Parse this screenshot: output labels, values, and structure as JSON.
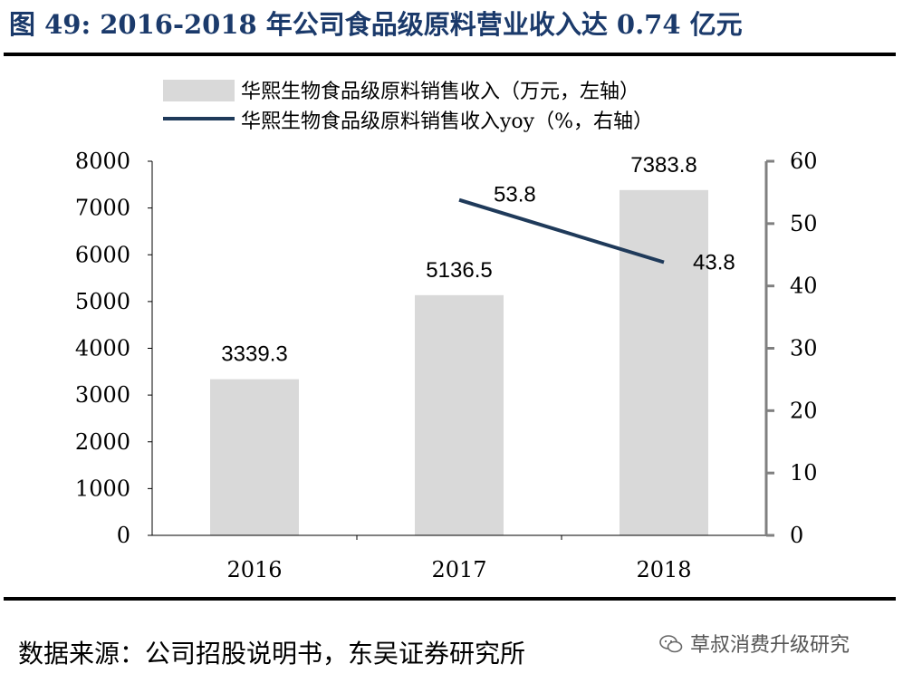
{
  "header": {
    "title": "图 49: 2016-2018 年公司食品级原料营业收入达 0.74 亿元"
  },
  "footer": {
    "source": "数据来源：公司招股说明书，东吴证券研究所"
  },
  "watermark": {
    "text": "草叔消费升级研究",
    "icon": "wechat-icon"
  },
  "colors": {
    "bar": "#d9d9d9",
    "line": "#1f3a5a",
    "axis_right": "#808080",
    "title": "#1b3a6b"
  },
  "chart_data": {
    "type": "bar+line",
    "categories": [
      "2016",
      "2017",
      "2018"
    ],
    "series": [
      {
        "name": "华熙生物食品级原料销售收入（万元，左轴）",
        "type": "bar",
        "axis": "left",
        "values": [
          3339.3,
          5136.5,
          7383.8
        ],
        "labels": [
          "3339.3",
          "5136.5",
          "7383.8"
        ]
      },
      {
        "name": "华熙生物食品级原料销售收入yoy（%，右轴）",
        "type": "line",
        "axis": "right",
        "values": [
          null,
          53.8,
          43.8
        ],
        "labels": [
          "",
          "53.8",
          "43.8"
        ]
      }
    ],
    "y_left": {
      "min": 0,
      "max": 8000,
      "ticks": [
        "0",
        "1000",
        "2000",
        "3000",
        "4000",
        "5000",
        "6000",
        "7000",
        "8000"
      ]
    },
    "y_right": {
      "min": 0,
      "max": 60,
      "ticks": [
        "0",
        "10",
        "20",
        "30",
        "40",
        "50",
        "60"
      ]
    },
    "legend_position": "top",
    "grid": false
  }
}
